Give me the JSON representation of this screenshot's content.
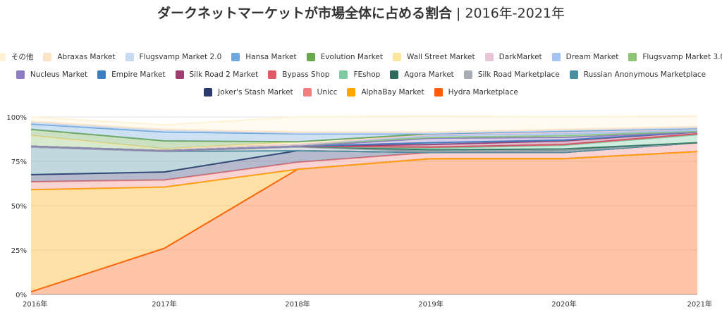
{
  "title": {
    "main": "ダークネットマーケットが市場全体に占める割合",
    "separator": " | ",
    "sub": "2016年-2021年"
  },
  "chart_data": {
    "type": "area",
    "stacked": true,
    "percent": true,
    "title": "ダークネットマーケットが市場全体に占める割合 | 2016年-2021年",
    "categories": [
      "2016年",
      "2017年",
      "2018年",
      "2019年",
      "2020年",
      "2021年"
    ],
    "y_ticks": [
      "0%",
      "25%",
      "50%",
      "75%",
      "100%"
    ],
    "ylim": [
      0,
      100
    ],
    "legend_position": "top",
    "legend_rows": [
      [
        "その他",
        "Abraxas Market",
        "Flugsvamp Market 2.0",
        "Hansa Market",
        "Evolution Market",
        "Wall Street Market",
        "DarkMarket",
        "Dream Market",
        "Flugsvamp Market 3.0"
      ],
      [
        "Nucleus Market",
        "Empire Market",
        "Silk Road 2 Market",
        "Bypass Shop",
        "FEshop",
        "Agora Market",
        "Silk Road Marketplace",
        "Russian Anonymous Marketplace"
      ],
      [
        "Joker's Stash Market",
        "Unicc",
        "AlphaBay Market",
        "Hydra Marketplace"
      ]
    ],
    "series": [
      {
        "name": "Hydra Marketplace",
        "color": "#ff5a0a",
        "values": [
          1.5,
          26,
          70.5,
          76.5,
          76.5,
          80.5
        ]
      },
      {
        "name": "AlphaBay Market",
        "color": "#ffa500",
        "values": [
          57.5,
          34.5,
          0,
          0,
          0,
          0
        ]
      },
      {
        "name": "Unicc",
        "color": "#f08080",
        "values": [
          4.5,
          4,
          4,
          3.5,
          3.5,
          5
        ]
      },
      {
        "name": "Joker's Stash Market",
        "color": "#2b3b6e",
        "values": [
          4,
          4.5,
          6.5,
          0,
          0,
          0
        ]
      },
      {
        "name": "Russian Anonymous Marketplace",
        "color": "#4a8fa0",
        "values": [
          15.5,
          11.5,
          0,
          0,
          0,
          0
        ]
      },
      {
        "name": "Silk Road Marketplace",
        "color": "#a8acb4",
        "values": [
          0,
          0,
          2,
          0.5,
          1,
          0
        ]
      },
      {
        "name": "Agora Market",
        "color": "#2f6b5e",
        "values": [
          0.5,
          0.5,
          0.5,
          1,
          1,
          0
        ]
      },
      {
        "name": "FEshop",
        "color": "#7ccba2",
        "values": [
          0,
          0,
          0,
          1,
          2,
          4.5
        ]
      },
      {
        "name": "Bypass Shop",
        "color": "#e05a63",
        "values": [
          0,
          0,
          0,
          0.5,
          0.5,
          0.5
        ]
      },
      {
        "name": "Silk Road 2 Market",
        "color": "#9e3d6e",
        "values": [
          0,
          0,
          0,
          1.5,
          2,
          1
        ]
      },
      {
        "name": "Empire Market",
        "color": "#3a7dc0",
        "values": [
          0,
          0,
          0,
          1,
          0.5,
          0
        ]
      },
      {
        "name": "Nucleus Market",
        "color": "#8e7cc3",
        "values": [
          0,
          0,
          0,
          2.5,
          1.5,
          0
        ]
      },
      {
        "name": "Flugsvamp Market 3.0",
        "color": "#8cc474",
        "values": [
          6,
          1,
          1,
          0.5,
          1,
          0.5
        ]
      },
      {
        "name": "Dream Market",
        "color": "#a3c4f3",
        "values": [
          0,
          0,
          0,
          1,
          1,
          0.5
        ]
      },
      {
        "name": "DarkMarket",
        "color": "#e8c6d8",
        "values": [
          0,
          0,
          0,
          0.5,
          1,
          0.5
        ]
      },
      {
        "name": "Wall Street Market",
        "color": "#fde5a0",
        "values": [
          0,
          0,
          1.5,
          0.5,
          0.5,
          0.5
        ]
      },
      {
        "name": "Evolution Market",
        "color": "#6aa84f",
        "values": [
          3.5,
          4.5,
          0,
          0,
          0,
          0
        ]
      },
      {
        "name": "Hansa Market",
        "color": "#6fa8dc",
        "values": [
          3,
          5,
          4.5,
          0,
          0,
          0
        ]
      },
      {
        "name": "Flugsvamp Market 2.0",
        "color": "#c9d9f2",
        "values": [
          1,
          1,
          0.5,
          0.5,
          0.5,
          0.5
        ]
      },
      {
        "name": "Abraxas Market",
        "color": "#fbe3c8",
        "values": [
          0.5,
          0.5,
          0.5,
          0.5,
          0.5,
          0.5
        ]
      },
      {
        "name": "その他",
        "color": "#fff3d6",
        "values": [
          2.5,
          2.5,
          8.5,
          9.0,
          7.0,
          6.0
        ]
      }
    ]
  }
}
